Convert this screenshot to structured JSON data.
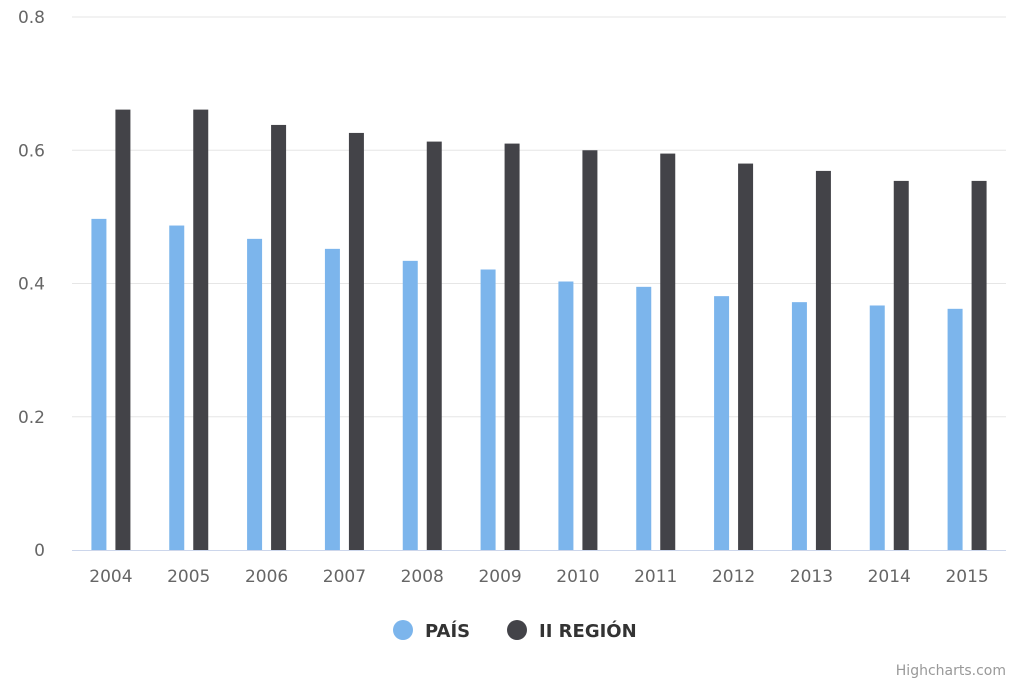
{
  "chart_data": {
    "type": "bar",
    "categories": [
      "2004",
      "2005",
      "2006",
      "2007",
      "2008",
      "2009",
      "2010",
      "2011",
      "2012",
      "2013",
      "2014",
      "2015"
    ],
    "series": [
      {
        "name": "PAÍS",
        "color": "#7cb5ec",
        "values": [
          0.497,
          0.487,
          0.467,
          0.452,
          0.434,
          0.421,
          0.403,
          0.395,
          0.381,
          0.372,
          0.367,
          0.362
        ]
      },
      {
        "name": "II REGIÓN",
        "color": "#434348",
        "values": [
          0.661,
          0.661,
          0.638,
          0.626,
          0.613,
          0.61,
          0.6,
          0.595,
          0.58,
          0.569,
          0.554,
          0.554
        ]
      }
    ],
    "ylim": [
      0,
      0.8
    ],
    "yticks": [
      0,
      0.2,
      0.4,
      0.6,
      0.8
    ],
    "ytick_labels": [
      "0",
      "0.2",
      "0.4",
      "0.6",
      "0.8"
    ],
    "grid": true,
    "legend_position": "bottom-center"
  },
  "credit": "Highcharts.com"
}
